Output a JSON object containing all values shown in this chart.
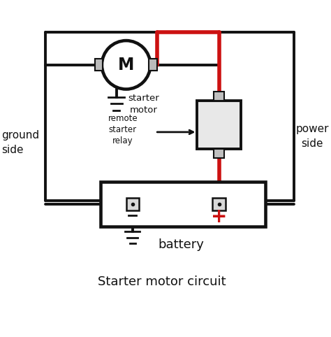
{
  "title": "Starter motor circuit",
  "bg_color": "#ffffff",
  "black": "#111111",
  "red": "#cc1111",
  "labels": {
    "ground_side": "ground\nside",
    "power_side": "power\nside",
    "starter_motor": "starter\nmotor",
    "remote_starter_relay": "remote\nstarter\nrelay",
    "battery": "battery",
    "motor_symbol": "M"
  },
  "lw_main": 2.8,
  "lw_red": 4.0
}
